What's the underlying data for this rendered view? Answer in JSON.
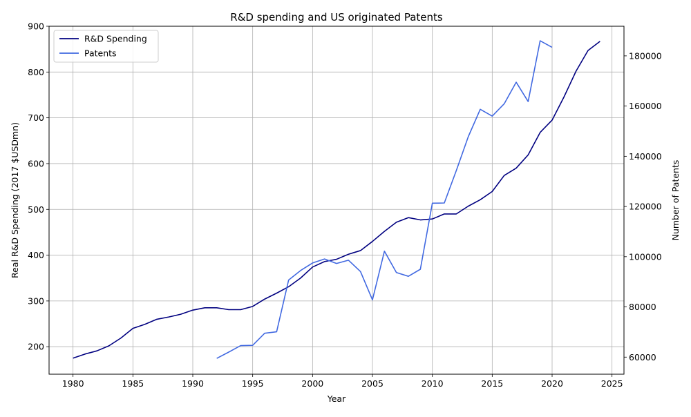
{
  "chart_data": {
    "type": "line",
    "title": "R&D spending and US originated Patents",
    "xlabel": "Year",
    "ylabel_left": "Real R&D Spending (2017 $USDmn)",
    "ylabel_right": "Number of Patents",
    "xlim": [
      1978,
      2026
    ],
    "ylim_left": [
      140,
      900
    ],
    "ylim_right": [
      53200,
      191800
    ],
    "x_ticks": [
      1980,
      1985,
      1990,
      1995,
      2000,
      2005,
      2010,
      2015,
      2020,
      2025
    ],
    "y_ticks_left": [
      200,
      300,
      400,
      500,
      600,
      700,
      800,
      900
    ],
    "y_ticks_right": [
      60000,
      80000,
      100000,
      120000,
      140000,
      160000,
      180000
    ],
    "grid": true,
    "legend_position": "upper-left",
    "series": [
      {
        "name": "R&D Spending",
        "axis": "left",
        "color": "#000080",
        "x": [
          1980,
          1981,
          1982,
          1983,
          1984,
          1985,
          1986,
          1987,
          1988,
          1989,
          1990,
          1991,
          1992,
          1993,
          1994,
          1995,
          1996,
          1997,
          1998,
          1999,
          2000,
          2001,
          2002,
          2003,
          2004,
          2005,
          2006,
          2007,
          2008,
          2009,
          2010,
          2011,
          2012,
          2013,
          2014,
          2015,
          2016,
          2017,
          2018,
          2019,
          2020,
          2021,
          2022,
          2023,
          2024
        ],
        "values": [
          175,
          184,
          191,
          202,
          219,
          240,
          249,
          260,
          265,
          271,
          280,
          285,
          285,
          281,
          281,
          288,
          304,
          317,
          331,
          350,
          374,
          386,
          391,
          402,
          410,
          430,
          452,
          472,
          482,
          477,
          479,
          490,
          490,
          507,
          521,
          539,
          574,
          590,
          619,
          668,
          695,
          746,
          802,
          847,
          867
        ]
      },
      {
        "name": "Patents",
        "axis": "right",
        "color": "#4169E1",
        "x": [
          1992,
          1993,
          1994,
          1995,
          1996,
          1997,
          1998,
          1999,
          2000,
          2001,
          2002,
          2003,
          2004,
          2005,
          2006,
          2007,
          2008,
          2009,
          2010,
          2011,
          2012,
          2013,
          2014,
          2015,
          2016,
          2017,
          2018,
          2019,
          2020
        ],
        "values": [
          59500,
          62000,
          64600,
          64700,
          69500,
          70100,
          90700,
          94500,
          97500,
          99100,
          97300,
          98600,
          94100,
          82800,
          102200,
          93700,
          92200,
          95000,
          121300,
          121400,
          134300,
          147800,
          158700,
          156000,
          160900,
          169500,
          161800,
          186000,
          183400
        ]
      }
    ]
  }
}
